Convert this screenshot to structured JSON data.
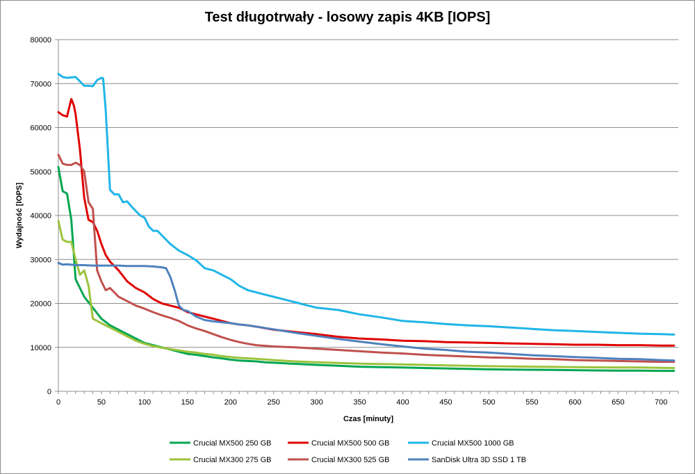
{
  "chart_data": {
    "type": "line",
    "title": "Test długotrwały - losowy zapis 4KB [IOPS]",
    "xlabel": "Czas [minuty]",
    "ylabel": "Wydajność [IOPS]",
    "xlim": [
      0,
      720
    ],
    "ylim": [
      0,
      80000
    ],
    "xticks": [
      0,
      50,
      100,
      150,
      200,
      250,
      300,
      350,
      400,
      450,
      500,
      550,
      600,
      650,
      700
    ],
    "yticks": [
      0,
      10000,
      20000,
      30000,
      40000,
      50000,
      60000,
      70000,
      80000
    ],
    "grid": "horizontal",
    "legend_position": "bottom",
    "series": [
      {
        "name": "Crucial MX500 250 GB",
        "color": "#00a550",
        "x": [
          0,
          5,
          10,
          15,
          20,
          25,
          30,
          40,
          50,
          60,
          70,
          80,
          90,
          100,
          110,
          120,
          130,
          140,
          150,
          160,
          170,
          180,
          190,
          200,
          210,
          220,
          230,
          240,
          250,
          260,
          270,
          280,
          290,
          300,
          325,
          350,
          375,
          400,
          425,
          450,
          475,
          500,
          525,
          550,
          575,
          600,
          625,
          650,
          675,
          700,
          715
        ],
        "y": [
          51000,
          45500,
          45000,
          39000,
          25500,
          23500,
          21500,
          19000,
          16500,
          15000,
          14000,
          13000,
          12000,
          11000,
          10500,
          10000,
          9500,
          9000,
          8500,
          8300,
          8000,
          7700,
          7500,
          7200,
          7000,
          6900,
          6800,
          6600,
          6500,
          6400,
          6300,
          6200,
          6100,
          6000,
          5800,
          5600,
          5500,
          5400,
          5300,
          5200,
          5100,
          5000,
          4950,
          4900,
          4850,
          4800,
          4750,
          4700,
          4700,
          4650,
          4650
        ]
      },
      {
        "name": "Crucial MX500 500 GB",
        "color": "#e00000",
        "x": [
          0,
          5,
          10,
          15,
          18,
          20,
          25,
          30,
          35,
          40,
          45,
          50,
          55,
          60,
          70,
          80,
          90,
          100,
          110,
          120,
          130,
          140,
          150,
          160,
          170,
          180,
          190,
          200,
          210,
          220,
          230,
          250,
          275,
          300,
          325,
          350,
          375,
          400,
          425,
          450,
          475,
          500,
          525,
          550,
          575,
          600,
          625,
          650,
          675,
          700,
          715
        ],
        "y": [
          63500,
          62800,
          62500,
          66500,
          65000,
          63000,
          55000,
          44000,
          39000,
          38500,
          36500,
          33500,
          31000,
          29500,
          27500,
          25000,
          23500,
          22500,
          21000,
          20000,
          19500,
          19000,
          18000,
          17500,
          17000,
          16500,
          16000,
          15500,
          15200,
          15000,
          14700,
          14000,
          13500,
          13000,
          12400,
          12000,
          11800,
          11500,
          11400,
          11200,
          11100,
          11000,
          10900,
          10800,
          10700,
          10600,
          10600,
          10500,
          10500,
          10400,
          10400
        ]
      },
      {
        "name": "Crucial MX500 1000 GB",
        "color": "#1fb5e8",
        "x": [
          0,
          5,
          10,
          15,
          20,
          25,
          30,
          35,
          40,
          45,
          50,
          52,
          55,
          60,
          65,
          70,
          75,
          80,
          85,
          90,
          95,
          100,
          105,
          110,
          115,
          120,
          130,
          140,
          150,
          160,
          170,
          180,
          190,
          200,
          210,
          220,
          230,
          240,
          250,
          260,
          270,
          280,
          290,
          300,
          325,
          350,
          375,
          400,
          425,
          450,
          475,
          500,
          525,
          550,
          575,
          600,
          625,
          650,
          675,
          700,
          715
        ],
        "y": [
          72200,
          71500,
          71300,
          71400,
          71500,
          70500,
          69500,
          69500,
          69400,
          70800,
          71300,
          71200,
          64000,
          45800,
          44800,
          44800,
          43000,
          43200,
          42000,
          41000,
          40000,
          39500,
          37500,
          36500,
          36500,
          35500,
          33500,
          32000,
          31000,
          29800,
          28000,
          27500,
          26500,
          25500,
          24000,
          23000,
          22500,
          22000,
          21500,
          21000,
          20500,
          20000,
          19500,
          19000,
          18500,
          17500,
          16800,
          16000,
          15700,
          15300,
          15000,
          14800,
          14500,
          14200,
          13900,
          13700,
          13500,
          13300,
          13100,
          13000,
          12900
        ]
      },
      {
        "name": "Crucial MX300 275 GB",
        "color": "#9bc33c",
        "x": [
          0,
          5,
          10,
          15,
          20,
          25,
          30,
          35,
          40,
          45,
          50,
          55,
          60,
          70,
          80,
          90,
          100,
          110,
          120,
          130,
          140,
          150,
          160,
          170,
          180,
          190,
          200,
          210,
          220,
          230,
          250,
          275,
          300,
          325,
          350,
          375,
          400,
          425,
          450,
          475,
          500,
          525,
          550,
          575,
          600,
          625,
          650,
          675,
          700,
          715
        ],
        "y": [
          38700,
          34500,
          34000,
          34000,
          30000,
          26500,
          27500,
          24000,
          16500,
          16000,
          15500,
          15000,
          14500,
          13500,
          12500,
          11500,
          10800,
          10300,
          9900,
          9600,
          9300,
          9000,
          8800,
          8500,
          8300,
          8000,
          7800,
          7600,
          7500,
          7400,
          7100,
          6800,
          6600,
          6450,
          6300,
          6200,
          6100,
          6000,
          5900,
          5800,
          5700,
          5650,
          5600,
          5550,
          5500,
          5450,
          5400,
          5400,
          5350,
          5300
        ]
      },
      {
        "name": "Crucial MX300 525 GB",
        "color": "#c0504d",
        "x": [
          0,
          5,
          10,
          15,
          20,
          25,
          30,
          35,
          40,
          45,
          50,
          55,
          60,
          70,
          80,
          90,
          100,
          110,
          120,
          130,
          140,
          150,
          160,
          170,
          180,
          190,
          200,
          210,
          220,
          230,
          250,
          275,
          300,
          325,
          350,
          375,
          400,
          425,
          450,
          475,
          500,
          525,
          550,
          575,
          600,
          625,
          650,
          675,
          700,
          715
        ],
        "y": [
          53800,
          51800,
          51500,
          51500,
          52000,
          51500,
          50000,
          43000,
          41500,
          27500,
          25000,
          23000,
          23500,
          21500,
          20500,
          19500,
          18800,
          18000,
          17300,
          16700,
          16000,
          15000,
          14300,
          13700,
          13000,
          12300,
          11700,
          11200,
          10800,
          10500,
          10200,
          10000,
          9700,
          9400,
          9100,
          8800,
          8600,
          8300,
          8100,
          7900,
          7700,
          7600,
          7400,
          7300,
          7100,
          7000,
          6900,
          6800,
          6700,
          6700
        ]
      },
      {
        "name": "SanDisk Ultra 3D SSD 1 TB",
        "color": "#4f81bd",
        "x": [
          0,
          5,
          10,
          20,
          30,
          40,
          50,
          60,
          70,
          80,
          90,
          100,
          110,
          120,
          125,
          130,
          135,
          140,
          145,
          150,
          160,
          170,
          180,
          190,
          200,
          210,
          220,
          230,
          250,
          275,
          300,
          325,
          350,
          375,
          400,
          425,
          450,
          475,
          500,
          525,
          550,
          575,
          600,
          625,
          650,
          675,
          700,
          715
        ],
        "y": [
          29200,
          28800,
          28900,
          28700,
          28700,
          28600,
          28600,
          28600,
          28600,
          28500,
          28500,
          28500,
          28400,
          28200,
          28000,
          26000,
          23000,
          19500,
          18500,
          18300,
          17000,
          16200,
          15900,
          15700,
          15500,
          15200,
          15000,
          14700,
          14100,
          13300,
          12600,
          11900,
          11300,
          10700,
          10200,
          9700,
          9400,
          9000,
          8800,
          8500,
          8200,
          8000,
          7800,
          7600,
          7400,
          7300,
          7100,
          7000
        ]
      }
    ]
  }
}
